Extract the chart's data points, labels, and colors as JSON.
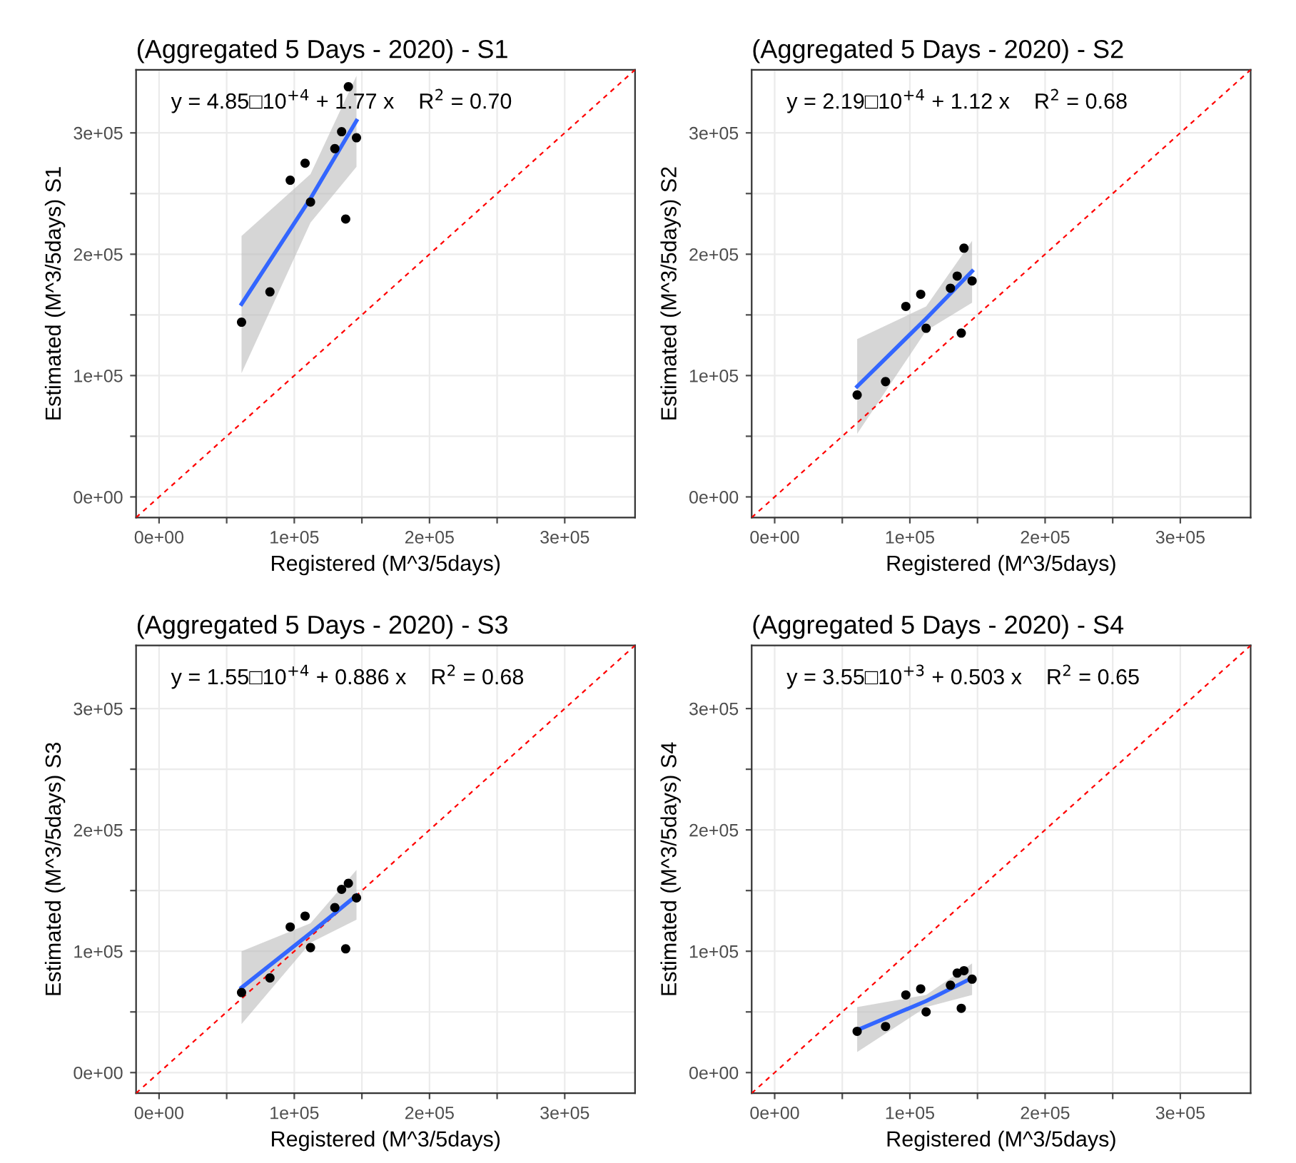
{
  "chart_data": [
    {
      "type": "scatter",
      "title": "(Aggregated 5 Days - 2020) - S1",
      "xlabel": "Registered (M^3/5days)",
      "ylabel": "Estimated (M^3/5days) S1",
      "annotations": [
        "y = 4.85□10$^{+4}$ + 1.77 x    R$^{2}$ = 0.70"
      ],
      "xlim": [
        -17000,
        352000
      ],
      "ylim": [
        -17000,
        352000
      ],
      "xticks": [
        {
          "value": 0,
          "label": "0e+00"
        },
        {
          "value": 50000,
          "label": null
        },
        {
          "value": 100000,
          "label": "1e+05"
        },
        {
          "value": 150000,
          "label": null
        },
        {
          "value": 200000,
          "label": "2e+05"
        },
        {
          "value": 250000,
          "label": null
        },
        {
          "value": 300000,
          "label": "3e+05"
        }
      ],
      "yticks": [
        {
          "value": 0,
          "label": "0e+00"
        },
        {
          "value": 50000,
          "label": null
        },
        {
          "value": 100000,
          "label": "1e+05"
        },
        {
          "value": 150000,
          "label": null
        },
        {
          "value": 200000,
          "label": "2e+05"
        },
        {
          "value": 250000,
          "label": null
        },
        {
          "value": 300000,
          "label": "3e+05"
        }
      ],
      "grid": true,
      "series": [
        {
          "type": "line",
          "color": "#ff0000",
          "line_style": "dashed",
          "x": [
            -17000,
            352000
          ],
          "values": [
            -17000,
            352000
          ]
        },
        {
          "type": "line",
          "color": "#3366ff",
          "line_style": "solid",
          "x": [
            61000,
            112000,
            146000
          ],
          "values": [
            159000,
            246000,
            310000
          ],
          "lower": [
            102000,
            226000,
            272000
          ],
          "upper": [
            215000,
            266000,
            347000
          ]
        },
        {
          "color": "#000000",
          "marker": "circle",
          "x": [
            61000,
            82000,
            97000,
            108000,
            112000,
            130000,
            135000,
            138000,
            140000,
            146000
          ],
          "values": [
            144000,
            169000,
            261000,
            275000,
            243000,
            287000,
            301000,
            229000,
            338000,
            296000
          ]
        }
      ]
    },
    {
      "type": "scatter",
      "title": "(Aggregated 5 Days - 2020) - S2",
      "xlabel": "Registered (M^3/5days)",
      "ylabel": "Estimated (M^3/5days) S2",
      "annotations": [
        "y = 2.19□10$^{+4}$ + 1.12 x    R$^{2}$ = 0.68"
      ],
      "xlim": [
        -17000,
        352000
      ],
      "ylim": [
        -17000,
        352000
      ],
      "xticks": [
        {
          "value": 0,
          "label": "0e+00"
        },
        {
          "value": 50000,
          "label": null
        },
        {
          "value": 100000,
          "label": "1e+05"
        },
        {
          "value": 150000,
          "label": null
        },
        {
          "value": 200000,
          "label": "2e+05"
        },
        {
          "value": 250000,
          "label": null
        },
        {
          "value": 300000,
          "label": "3e+05"
        }
      ],
      "yticks": [
        {
          "value": 0,
          "label": "0e+00"
        },
        {
          "value": 50000,
          "label": null
        },
        {
          "value": 100000,
          "label": "1e+05"
        },
        {
          "value": 150000,
          "label": null
        },
        {
          "value": 200000,
          "label": "2e+05"
        },
        {
          "value": 250000,
          "label": null
        },
        {
          "value": 300000,
          "label": "3e+05"
        }
      ],
      "grid": true,
      "series": [
        {
          "type": "line",
          "color": "#ff0000",
          "line_style": "dashed",
          "x": [
            -17000,
            352000
          ],
          "values": [
            -17000,
            352000
          ]
        },
        {
          "type": "line",
          "color": "#3366ff",
          "line_style": "solid",
          "x": [
            61000,
            112000,
            146000
          ],
          "values": [
            91000,
            147000,
            186000
          ],
          "lower": [
            52000,
            137000,
            160000
          ],
          "upper": [
            130000,
            157000,
            211000
          ]
        },
        {
          "color": "#000000",
          "marker": "circle",
          "x": [
            61000,
            82000,
            97000,
            108000,
            112000,
            130000,
            135000,
            138000,
            140000,
            146000
          ],
          "values": [
            84000,
            95000,
            157000,
            167000,
            139000,
            172000,
            182000,
            135000,
            205000,
            178000
          ]
        }
      ]
    },
    {
      "type": "scatter",
      "title": "(Aggregated 5 Days - 2020) - S3",
      "xlabel": "Registered (M^3/5days)",
      "ylabel": "Estimated (M^3/5days) S3",
      "annotations": [
        "y = 1.55□10$^{+4}$ + 0.886 x    R$^{2}$ = 0.68"
      ],
      "xlim": [
        -17000,
        352000
      ],
      "ylim": [
        -17000,
        352000
      ],
      "xticks": [
        {
          "value": 0,
          "label": "0e+00"
        },
        {
          "value": 50000,
          "label": null
        },
        {
          "value": 100000,
          "label": "1e+05"
        },
        {
          "value": 150000,
          "label": null
        },
        {
          "value": 200000,
          "label": "2e+05"
        },
        {
          "value": 250000,
          "label": null
        },
        {
          "value": 300000,
          "label": "3e+05"
        }
      ],
      "yticks": [
        {
          "value": 0,
          "label": "0e+00"
        },
        {
          "value": 50000,
          "label": null
        },
        {
          "value": 100000,
          "label": "1e+05"
        },
        {
          "value": 150000,
          "label": null
        },
        {
          "value": 200000,
          "label": "2e+05"
        },
        {
          "value": 250000,
          "label": null
        },
        {
          "value": 300000,
          "label": "3e+05"
        }
      ],
      "grid": true,
      "series": [
        {
          "type": "line",
          "color": "#ff0000",
          "line_style": "dashed",
          "x": [
            -17000,
            352000
          ],
          "values": [
            -17000,
            352000
          ]
        },
        {
          "type": "line",
          "color": "#3366ff",
          "line_style": "solid",
          "x": [
            61000,
            112000,
            146000
          ],
          "values": [
            70000,
            115000,
            146000
          ],
          "lower": [
            40000,
            107000,
            126000
          ],
          "upper": [
            100000,
            123000,
            167000
          ]
        },
        {
          "color": "#000000",
          "marker": "circle",
          "x": [
            61000,
            82000,
            97000,
            108000,
            112000,
            130000,
            135000,
            138000,
            140000,
            146000
          ],
          "values": [
            66000,
            78000,
            120000,
            129000,
            103000,
            136000,
            151000,
            102000,
            156000,
            144000
          ]
        }
      ]
    },
    {
      "type": "scatter",
      "title": "(Aggregated 5 Days - 2020) - S4",
      "xlabel": "Registered (M^3/5days)",
      "ylabel": "Estimated (M^3/5days) S4",
      "annotations": [
        "y = 3.55□10$^{+3}$ + 0.503 x    R$^{2}$ = 0.65"
      ],
      "xlim": [
        -17000,
        352000
      ],
      "ylim": [
        -17000,
        352000
      ],
      "xticks": [
        {
          "value": 0,
          "label": "0e+00"
        },
        {
          "value": 50000,
          "label": null
        },
        {
          "value": 100000,
          "label": "1e+05"
        },
        {
          "value": 150000,
          "label": null
        },
        {
          "value": 200000,
          "label": "2e+05"
        },
        {
          "value": 250000,
          "label": null
        },
        {
          "value": 300000,
          "label": "3e+05"
        }
      ],
      "yticks": [
        {
          "value": 0,
          "label": "0e+00"
        },
        {
          "value": 50000,
          "label": null
        },
        {
          "value": 100000,
          "label": "1e+05"
        },
        {
          "value": 150000,
          "label": null
        },
        {
          "value": 200000,
          "label": "2e+05"
        },
        {
          "value": 250000,
          "label": null
        },
        {
          "value": 300000,
          "label": "3e+05"
        }
      ],
      "grid": true,
      "series": [
        {
          "type": "line",
          "color": "#ff0000",
          "line_style": "dashed",
          "x": [
            -17000,
            352000
          ],
          "values": [
            -17000,
            352000
          ]
        },
        {
          "type": "line",
          "color": "#3366ff",
          "line_style": "solid",
          "x": [
            61000,
            112000,
            146000
          ],
          "values": [
            35000,
            59000,
            78000
          ],
          "lower": [
            17000,
            54000,
            64000
          ],
          "upper": [
            54000,
            64000,
            90000
          ]
        },
        {
          "color": "#000000",
          "marker": "circle",
          "x": [
            61000,
            82000,
            97000,
            108000,
            112000,
            130000,
            135000,
            138000,
            140000,
            146000
          ],
          "values": [
            34000,
            38000,
            64000,
            69000,
            50000,
            72000,
            82000,
            53000,
            84000,
            77000
          ]
        }
      ]
    }
  ]
}
